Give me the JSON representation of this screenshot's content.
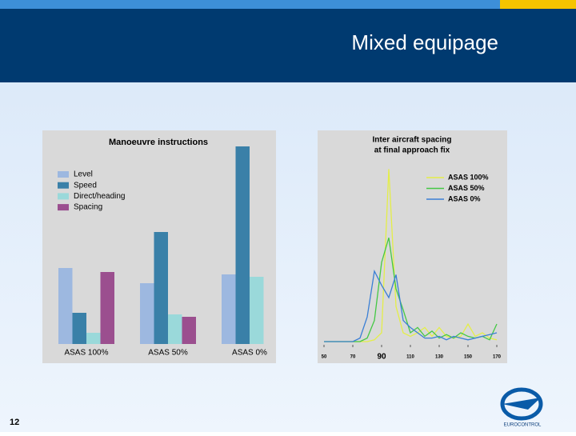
{
  "slide": {
    "title": "Mixed equipage",
    "page_number": "12",
    "logo_text": "EUROCONTROL"
  },
  "chart_data": [
    {
      "type": "bar",
      "title": "Manoeuvre instructions",
      "categories": [
        "ASAS 100%",
        "ASAS 50%",
        "ASAS 0%"
      ],
      "series": [
        {
          "name": "Level",
          "color": "#9db8e0",
          "values": [
            95,
            76,
            87
          ]
        },
        {
          "name": "Speed",
          "color": "#3a80a8",
          "values": [
            39,
            140,
            247
          ]
        },
        {
          "name": "Direct/heading",
          "color": "#9ad9da",
          "values": [
            14,
            37,
            84
          ]
        },
        {
          "name": "Spacing",
          "color": "#9b4f8f",
          "values": [
            90,
            34,
            null
          ]
        }
      ],
      "ylim": [
        0,
        260
      ],
      "legend": "upper-left"
    },
    {
      "type": "line",
      "title": [
        "Inter aircraft spacing",
        "at final approach fix"
      ],
      "x": [
        50,
        55,
        60,
        65,
        70,
        75,
        80,
        85,
        90,
        95,
        100,
        105,
        110,
        115,
        120,
        125,
        130,
        135,
        140,
        145,
        150,
        155,
        160,
        165,
        170
      ],
      "series": [
        {
          "name": "ASAS 100%",
          "color": "#e4ee48",
          "values": [
            0,
            0,
            0,
            0,
            0,
            0,
            0,
            1,
            5,
            98,
            20,
            5,
            3,
            5,
            8,
            3,
            8,
            3,
            2,
            3,
            10,
            3,
            5,
            2,
            1
          ]
        },
        {
          "name": "ASAS 50%",
          "color": "#44c844",
          "values": [
            0,
            0,
            0,
            0,
            0,
            0,
            2,
            12,
            45,
            59,
            30,
            18,
            5,
            8,
            3,
            6,
            2,
            4,
            2,
            5,
            3,
            2,
            3,
            1,
            10
          ]
        },
        {
          "name": "ASAS 0%",
          "color": "#3a7fd5",
          "values": [
            0,
            0,
            0,
            0,
            0,
            2,
            14,
            40,
            32,
            25,
            38,
            12,
            8,
            5,
            2,
            2,
            3,
            1,
            3,
            2,
            1,
            2,
            3,
            4,
            5
          ]
        }
      ],
      "xlim": [
        50,
        170
      ],
      "ylim": [
        0,
        100
      ],
      "xticks": [
        50,
        70,
        90,
        110,
        130,
        150,
        170
      ],
      "highlight_xtick": 90,
      "legend": "upper-right"
    }
  ]
}
